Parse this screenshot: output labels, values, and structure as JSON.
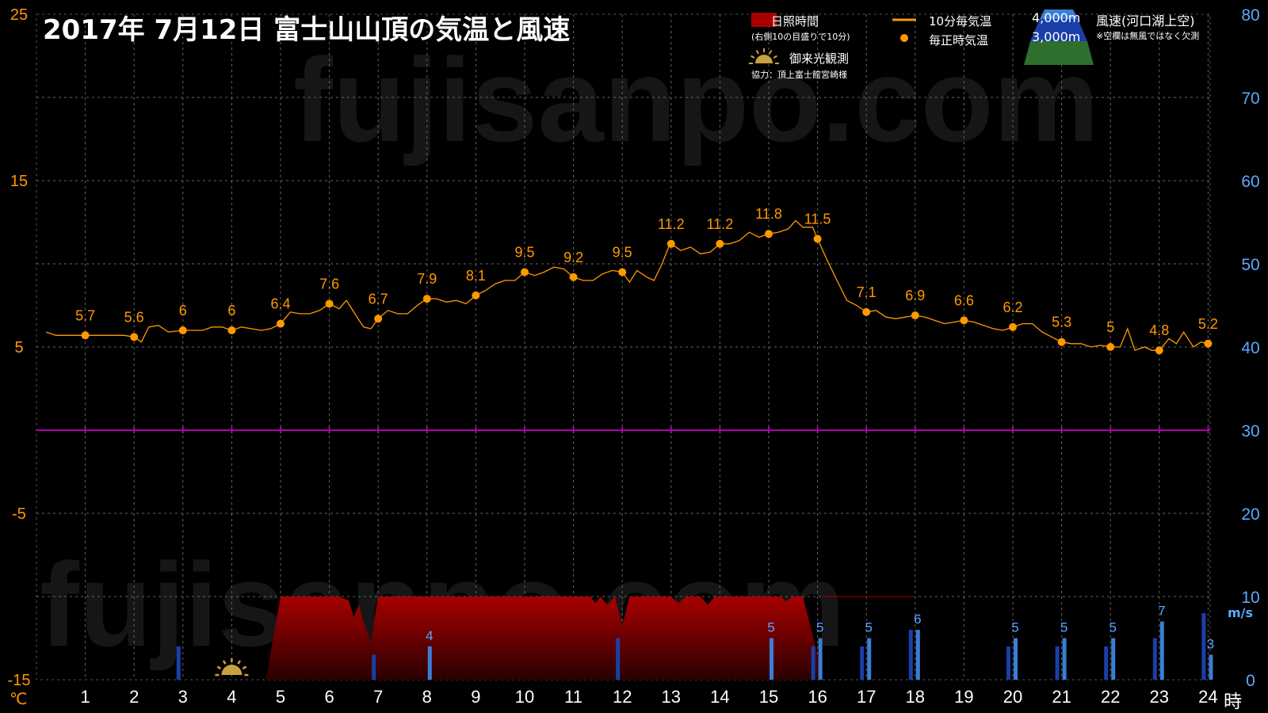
{
  "header": {
    "title": "2017年  7月12日   富士山山頂の気温と風速",
    "watermark": "fujisanpo.com"
  },
  "legend": {
    "sunshine": "日照時間",
    "sunshine_note": "(右側10の目盛りで10分)",
    "temp10": "10分毎気温",
    "temp_hourly": "毎正時気温",
    "wind_4000": "4,000m",
    "wind_3000": "3,000m",
    "wind_title": "風速(河口湖上空)",
    "wind_note": "※空欄は無風ではなく欠測",
    "sunrise": "御来光観測",
    "credit": "協力：頂上富士館宮崎様"
  },
  "axes": {
    "left_unit": "℃",
    "right_unit": "m/s",
    "x_unit": "時"
  },
  "colors": {
    "background": "#000000",
    "temperature": "#ff9900",
    "sunshine": "#a80000",
    "wind_3000": "#1a3fa8",
    "wind_4000": "#3a7fd6",
    "right_axis": "#5aa9ff",
    "zero_line": "#b000b0",
    "grid": "#666666"
  },
  "chart_data": {
    "type": "line",
    "title": "2017年  7月12日   富士山山頂の気温と風速",
    "x_ticks": [
      "1",
      "2",
      "3",
      "4",
      "5",
      "6",
      "7",
      "8",
      "9",
      "10",
      "11",
      "12",
      "13",
      "14",
      "15",
      "16",
      "17",
      "18",
      "19",
      "20",
      "21",
      "22",
      "23",
      "24"
    ],
    "y_left_ticks": [
      "25",
      "15",
      "5",
      "-5",
      "-15"
    ],
    "y_right_ticks": [
      "80",
      "70",
      "60",
      "50",
      "40",
      "30",
      "20",
      "10",
      "0"
    ],
    "ylim_temperature": [
      -15,
      25
    ],
    "ylim_wind": [
      0,
      80
    ],
    "hourly_temperature": {
      "hours": [
        1,
        2,
        3,
        4,
        5,
        6,
        7,
        8,
        9,
        10,
        11,
        12,
        13,
        14,
        15,
        16,
        17,
        18,
        19,
        20,
        21,
        22,
        23,
        24
      ],
      "values": [
        5.7,
        5.6,
        6,
        6,
        6.4,
        7.6,
        6.7,
        7.9,
        8.1,
        9.5,
        9.2,
        9.5,
        11.2,
        11.2,
        11.8,
        11.5,
        7.1,
        6.9,
        6.6,
        6.2,
        5.3,
        5,
        4.8,
        5.2
      ],
      "labels": [
        "5.7",
        "5.6",
        "6",
        "6",
        "6.4",
        "7.6",
        "6.7",
        "7.9",
        "8.1",
        "9.5",
        "9.2",
        "9.5",
        "11.2",
        "11.2",
        "11.8",
        "11.5",
        "7.1",
        "6.9",
        "6.6",
        "6.2",
        "5.3",
        "5",
        "4.8",
        "5.2"
      ]
    },
    "ten_minute_temperature": [
      [
        0.2,
        5.9
      ],
      [
        0.4,
        5.7
      ],
      [
        0.6,
        5.7
      ],
      [
        0.8,
        5.7
      ],
      [
        1.0,
        5.7
      ],
      [
        1.2,
        5.7
      ],
      [
        1.4,
        5.7
      ],
      [
        1.6,
        5.7
      ],
      [
        1.8,
        5.7
      ],
      [
        2.0,
        5.6
      ],
      [
        2.15,
        5.3
      ],
      [
        2.3,
        6.2
      ],
      [
        2.5,
        6.3
      ],
      [
        2.7,
        5.9
      ],
      [
        3.0,
        6.0
      ],
      [
        3.2,
        6.0
      ],
      [
        3.4,
        6.0
      ],
      [
        3.6,
        6.2
      ],
      [
        3.8,
        6.2
      ],
      [
        4.0,
        6.0
      ],
      [
        4.2,
        6.2
      ],
      [
        4.4,
        6.1
      ],
      [
        4.6,
        6.0
      ],
      [
        4.8,
        6.1
      ],
      [
        5.0,
        6.4
      ],
      [
        5.2,
        7.1
      ],
      [
        5.4,
        7.0
      ],
      [
        5.6,
        7.0
      ],
      [
        5.8,
        7.2
      ],
      [
        6.0,
        7.6
      ],
      [
        6.2,
        7.3
      ],
      [
        6.35,
        7.8
      ],
      [
        6.5,
        7.1
      ],
      [
        6.7,
        6.2
      ],
      [
        6.85,
        6.1
      ],
      [
        7.0,
        6.7
      ],
      [
        7.2,
        7.2
      ],
      [
        7.4,
        7.0
      ],
      [
        7.6,
        7.0
      ],
      [
        7.8,
        7.5
      ],
      [
        8.0,
        7.9
      ],
      [
        8.2,
        7.9
      ],
      [
        8.4,
        7.7
      ],
      [
        8.6,
        7.8
      ],
      [
        8.8,
        7.6
      ],
      [
        9.0,
        8.1
      ],
      [
        9.2,
        8.4
      ],
      [
        9.4,
        8.8
      ],
      [
        9.6,
        9.0
      ],
      [
        9.8,
        9.0
      ],
      [
        10.0,
        9.5
      ],
      [
        10.2,
        9.3
      ],
      [
        10.4,
        9.5
      ],
      [
        10.6,
        9.8
      ],
      [
        10.8,
        9.7
      ],
      [
        11.0,
        9.2
      ],
      [
        11.2,
        9.0
      ],
      [
        11.4,
        9.0
      ],
      [
        11.6,
        9.4
      ],
      [
        11.8,
        9.6
      ],
      [
        12.0,
        9.5
      ],
      [
        12.15,
        8.9
      ],
      [
        12.3,
        9.6
      ],
      [
        12.5,
        9.2
      ],
      [
        12.65,
        9.0
      ],
      [
        12.8,
        9.9
      ],
      [
        12.95,
        11.0
      ],
      [
        13.0,
        11.2
      ],
      [
        13.2,
        10.8
      ],
      [
        13.4,
        11.0
      ],
      [
        13.6,
        10.6
      ],
      [
        13.8,
        10.7
      ],
      [
        14.0,
        11.2
      ],
      [
        14.2,
        11.2
      ],
      [
        14.4,
        11.4
      ],
      [
        14.6,
        11.9
      ],
      [
        14.8,
        11.6
      ],
      [
        15.0,
        11.8
      ],
      [
        15.2,
        11.9
      ],
      [
        15.4,
        12.1
      ],
      [
        15.55,
        12.6
      ],
      [
        15.7,
        12.2
      ],
      [
        15.9,
        12.2
      ],
      [
        16.0,
        11.5
      ],
      [
        16.2,
        10.2
      ],
      [
        16.4,
        9.0
      ],
      [
        16.6,
        7.8
      ],
      [
        16.8,
        7.5
      ],
      [
        17.0,
        7.1
      ],
      [
        17.2,
        7.2
      ],
      [
        17.4,
        6.8
      ],
      [
        17.6,
        6.7
      ],
      [
        17.8,
        6.8
      ],
      [
        18.0,
        6.9
      ],
      [
        18.2,
        6.8
      ],
      [
        18.4,
        6.6
      ],
      [
        18.6,
        6.4
      ],
      [
        18.8,
        6.5
      ],
      [
        19.0,
        6.6
      ],
      [
        19.2,
        6.5
      ],
      [
        19.4,
        6.3
      ],
      [
        19.6,
        6.1
      ],
      [
        19.8,
        6.0
      ],
      [
        20.0,
        6.2
      ],
      [
        20.2,
        6.4
      ],
      [
        20.4,
        6.4
      ],
      [
        20.6,
        5.9
      ],
      [
        20.8,
        5.6
      ],
      [
        21.0,
        5.3
      ],
      [
        21.2,
        5.2
      ],
      [
        21.4,
        5.2
      ],
      [
        21.6,
        5.0
      ],
      [
        21.8,
        5.1
      ],
      [
        22.0,
        5.0
      ],
      [
        22.2,
        5.0
      ],
      [
        22.35,
        6.1
      ],
      [
        22.5,
        4.8
      ],
      [
        22.7,
        5.0
      ],
      [
        22.85,
        4.8
      ],
      [
        23.0,
        4.8
      ],
      [
        23.2,
        5.5
      ],
      [
        23.35,
        5.2
      ],
      [
        23.5,
        5.9
      ],
      [
        23.7,
        5.0
      ],
      [
        23.85,
        5.3
      ],
      [
        24.0,
        5.2
      ]
    ],
    "sunshine_minutes": [
      [
        4.55,
        0
      ],
      [
        4.7,
        0
      ],
      [
        5.0,
        10
      ],
      [
        5.2,
        10
      ],
      [
        5.4,
        10
      ],
      [
        5.6,
        10
      ],
      [
        5.8,
        10
      ],
      [
        6.0,
        10
      ],
      [
        6.2,
        10
      ],
      [
        6.4,
        9.5
      ],
      [
        6.5,
        7.5
      ],
      [
        6.6,
        9.0
      ],
      [
        6.7,
        7.0
      ],
      [
        6.85,
        4.5
      ],
      [
        7.0,
        10
      ],
      [
        7.2,
        10
      ],
      [
        7.4,
        10
      ],
      [
        7.6,
        10
      ],
      [
        7.8,
        10
      ],
      [
        8.0,
        10
      ],
      [
        8.2,
        10
      ],
      [
        8.4,
        10
      ],
      [
        8.6,
        10
      ],
      [
        8.8,
        10
      ],
      [
        9.0,
        10
      ],
      [
        9.2,
        10
      ],
      [
        9.4,
        10
      ],
      [
        9.6,
        10
      ],
      [
        9.8,
        10
      ],
      [
        10.0,
        10
      ],
      [
        10.2,
        10
      ],
      [
        10.4,
        10
      ],
      [
        10.6,
        10
      ],
      [
        10.8,
        10
      ],
      [
        11.0,
        10
      ],
      [
        11.2,
        10
      ],
      [
        11.35,
        10
      ],
      [
        11.45,
        9.2
      ],
      [
        11.55,
        10
      ],
      [
        11.7,
        9.0
      ],
      [
        11.85,
        10
      ],
      [
        12.0,
        6.5
      ],
      [
        12.15,
        10
      ],
      [
        12.3,
        10
      ],
      [
        12.5,
        10
      ],
      [
        12.7,
        10
      ],
      [
        12.9,
        10
      ],
      [
        13.0,
        10
      ],
      [
        13.15,
        9.2
      ],
      [
        13.3,
        10
      ],
      [
        13.45,
        10
      ],
      [
        13.6,
        10
      ],
      [
        13.75,
        9.0
      ],
      [
        13.9,
        10
      ],
      [
        14.1,
        10
      ],
      [
        14.3,
        10
      ],
      [
        14.5,
        10
      ],
      [
        14.7,
        10
      ],
      [
        14.9,
        10
      ],
      [
        15.1,
        10
      ],
      [
        15.25,
        10
      ],
      [
        15.35,
        9.4
      ],
      [
        15.5,
        10
      ],
      [
        15.7,
        10
      ],
      [
        15.85,
        6.5
      ],
      [
        16.0,
        3.0
      ],
      [
        16.1,
        0
      ]
    ],
    "sunshine_outline_end": 18.0,
    "wind_speed_3000m": [
      {
        "hour": 3,
        "value": 4
      },
      {
        "hour": 7,
        "value": 3
      },
      {
        "hour": 12,
        "value": 5
      },
      {
        "hour": 16,
        "value": 4
      },
      {
        "hour": 17,
        "value": 4
      },
      {
        "hour": 18,
        "value": 6
      },
      {
        "hour": 20,
        "value": 4
      },
      {
        "hour": 21,
        "value": 4
      },
      {
        "hour": 22,
        "value": 4
      },
      {
        "hour": 23,
        "value": 5
      },
      {
        "hour": 24,
        "value": 8
      }
    ],
    "wind_speed_4000m": [
      {
        "hour": 8,
        "value": 4,
        "label": "4"
      },
      {
        "hour": 15,
        "value": 5,
        "label": "5"
      },
      {
        "hour": 16,
        "value": 5,
        "label": "5"
      },
      {
        "hour": 17,
        "value": 5,
        "label": "5"
      },
      {
        "hour": 18,
        "value": 6,
        "label": "6"
      },
      {
        "hour": 20,
        "value": 5,
        "label": "5"
      },
      {
        "hour": 21,
        "value": 5,
        "label": "5"
      },
      {
        "hour": 22,
        "value": 5,
        "label": "5"
      },
      {
        "hour": 23,
        "value": 7,
        "label": "7"
      },
      {
        "hour": 24,
        "value": 3,
        "label": "3"
      }
    ],
    "sunrise_hour": 4.0
  }
}
